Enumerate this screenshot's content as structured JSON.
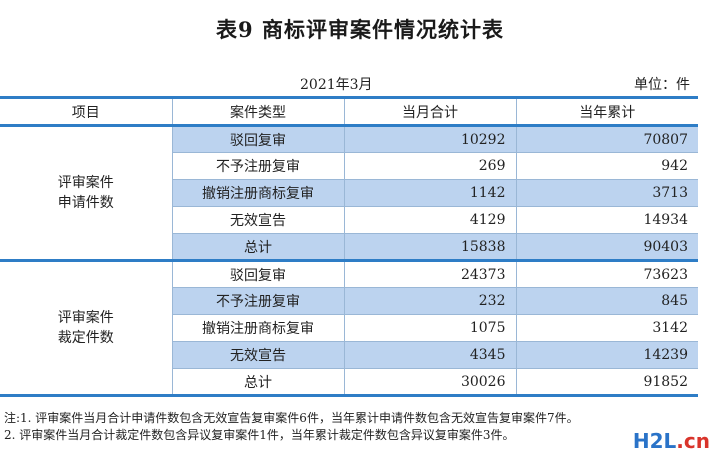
{
  "title": "表9 商标评审案件情况统计表",
  "date": "2021年3月",
  "unit": "单位：件",
  "headers": [
    "项目",
    "案件类型",
    "当月合计",
    "当年累计"
  ],
  "groups": [
    {
      "label_line1": "评审案件",
      "label_line2": "申请件数",
      "rows": [
        {
          "type": "驳回复审",
          "month": "10292",
          "year": "70807"
        },
        {
          "type": "不予注册复审",
          "month": "269",
          "year": "942"
        },
        {
          "type": "撤销注册商标复审",
          "month": "1142",
          "year": "3713"
        },
        {
          "type": "无效宣告",
          "month": "4129",
          "year": "14934"
        },
        {
          "type": "总计",
          "month": "15838",
          "year": "90403"
        }
      ]
    },
    {
      "label_line1": "评审案件",
      "label_line2": "裁定件数",
      "rows": [
        {
          "type": "驳回复审",
          "month": "24373",
          "year": "73623"
        },
        {
          "type": "不予注册复审",
          "month": "232",
          "year": "845"
        },
        {
          "type": "撤销注册商标复审",
          "month": "1075",
          "year": "3142"
        },
        {
          "type": "无效宣告",
          "month": "4345",
          "year": "14239"
        },
        {
          "type": "总计",
          "month": "30026",
          "year": "91852"
        }
      ]
    }
  ],
  "notes": [
    "注:1. 评审案件当月合计申请件数包含无效宣告复审案件6件，当年累计申请件数包含无效宣告复审案件7件。",
    "    2. 评审案件当月合计裁定件数包含异议复审案件1件，当年累计裁定件数包含异议复审案件3件。"
  ],
  "watermark": {
    "part1": "H2L",
    "part2": ".cn"
  }
}
